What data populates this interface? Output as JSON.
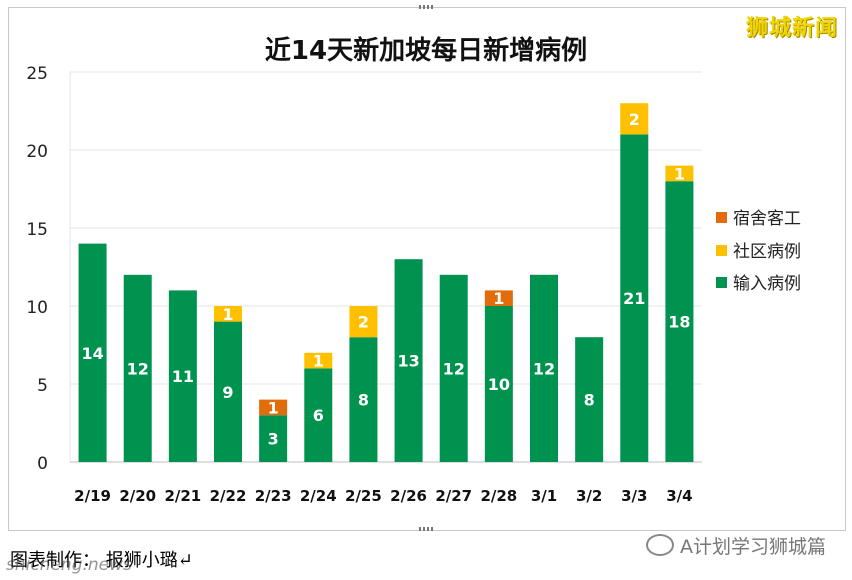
{
  "watermark": "狮城新闻",
  "caption": "图表制作： 报狮小璐↵",
  "source_watermark": "shicheng.news",
  "account": "A计划学习狮城篇",
  "colors": {
    "dorm": "#e36c0a",
    "community": "#ffc000",
    "imported": "#00924f"
  },
  "chart_data": {
    "type": "bar",
    "stacked": true,
    "title": "近14天新加坡每日新增病例",
    "categories": [
      "2/19",
      "2/20",
      "2/21",
      "2/22",
      "2/23",
      "2/24",
      "2/25",
      "2/26",
      "2/27",
      "2/28",
      "3/1",
      "3/2",
      "3/3",
      "3/4"
    ],
    "series": [
      {
        "name": "输入病例",
        "color": "#00924f",
        "values": [
          14,
          12,
          11,
          9,
          3,
          6,
          8,
          13,
          12,
          10,
          12,
          8,
          21,
          18
        ]
      },
      {
        "name": "社区病例",
        "color": "#ffc000",
        "values": [
          0,
          0,
          0,
          1,
          0,
          1,
          2,
          0,
          0,
          0,
          0,
          0,
          2,
          1
        ]
      },
      {
        "name": "宿舍客工",
        "color": "#e36c0a",
        "values": [
          0,
          0,
          0,
          0,
          1,
          0,
          0,
          0,
          0,
          1,
          0,
          0,
          0,
          0
        ]
      }
    ],
    "legend_order": [
      "宿舍客工",
      "社区病例",
      "输入病例"
    ],
    "legend_position": "right",
    "ylim": [
      0,
      25
    ],
    "yticks": [
      0,
      5,
      10,
      15,
      20,
      25
    ],
    "grid": true
  }
}
